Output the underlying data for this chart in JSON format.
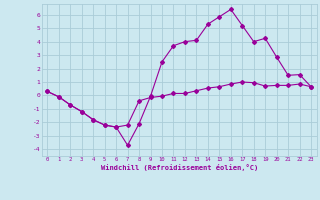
{
  "title": "",
  "xlabel": "Windchill (Refroidissement éolien,°C)",
  "background_color": "#cce8f0",
  "grid_color": "#aaccd8",
  "line_color": "#990099",
  "xlim": [
    -0.5,
    23.5
  ],
  "ylim": [
    -4.5,
    6.8
  ],
  "yticks": [
    -4,
    -3,
    -2,
    -1,
    0,
    1,
    2,
    3,
    4,
    5,
    6
  ],
  "xticks": [
    0,
    1,
    2,
    3,
    4,
    5,
    6,
    7,
    8,
    9,
    10,
    11,
    12,
    13,
    14,
    15,
    16,
    17,
    18,
    19,
    20,
    21,
    22,
    23
  ],
  "line1_x": [
    0,
    1,
    2,
    3,
    4,
    5,
    6,
    7,
    8,
    9,
    10,
    11,
    12,
    13,
    14,
    15,
    16,
    17,
    18,
    19,
    20,
    21,
    22,
    23
  ],
  "line1_y": [
    0.3,
    -0.1,
    -0.7,
    -1.2,
    -1.8,
    -2.2,
    -2.35,
    -3.7,
    -2.1,
    -0.05,
    2.5,
    3.7,
    4.0,
    4.1,
    5.3,
    5.85,
    6.4,
    5.2,
    4.0,
    4.25,
    2.85,
    1.5,
    1.55,
    0.65
  ],
  "line2_x": [
    0,
    1,
    2,
    3,
    4,
    5,
    6,
    7,
    8,
    9,
    10,
    11,
    12,
    13,
    14,
    15,
    16,
    17,
    18,
    19,
    20,
    21,
    22,
    23
  ],
  "line2_y": [
    0.3,
    -0.1,
    -0.7,
    -1.2,
    -1.8,
    -2.2,
    -2.35,
    -2.2,
    -0.4,
    -0.15,
    -0.05,
    0.15,
    0.15,
    0.35,
    0.55,
    0.65,
    0.85,
    1.0,
    0.95,
    0.7,
    0.75,
    0.75,
    0.85,
    0.65
  ]
}
